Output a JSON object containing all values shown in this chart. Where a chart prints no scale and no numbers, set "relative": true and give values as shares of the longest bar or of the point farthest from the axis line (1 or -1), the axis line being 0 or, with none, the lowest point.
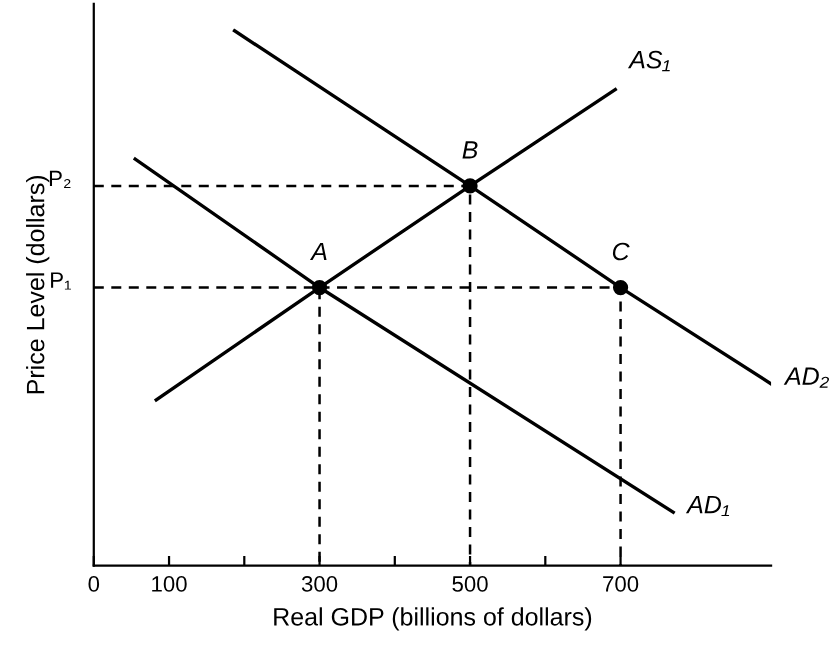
{
  "chart_data": {
    "type": "line",
    "xlabel": "Real GDP (billions of dollars)",
    "ylabel": "Price Level (dollars)",
    "relative": true,
    "xlim": [
      0,
      900
    ],
    "xticks": [
      0,
      100,
      {
        "value": 200,
        "label": null
      },
      300,
      {
        "value": 400,
        "label": null
      },
      500,
      {
        "value": 600,
        "label": null
      },
      700
    ],
    "grid": false,
    "legend": false,
    "series": [
      {
        "name": "AS₁",
        "color": "#000000",
        "x": [
          83,
          300,
          500,
          693
        ],
        "values": [
          0.31,
          0.52,
          0.71,
          0.89
        ]
      },
      {
        "name": "AD₁",
        "color": "#000000",
        "x": [
          55,
          300,
          770
        ],
        "values": [
          0.76,
          0.52,
          0.1
        ]
      },
      {
        "name": "AD₂",
        "color": "#000000",
        "x": [
          187,
          500,
          700,
          900
        ],
        "values": [
          1.0,
          0.71,
          0.52,
          0.34
        ]
      },
      {
        "color": "#000000",
        "type": "line",
        "line_style": "dashed",
        "x": [
          0,
          300,
          300
        ],
        "values": [
          0.52,
          0.52,
          0
        ]
      },
      {
        "color": "#000000",
        "type": "line",
        "line_style": "dashed",
        "x": [
          0,
          500,
          500
        ],
        "values": [
          0.71,
          0.71,
          0
        ]
      },
      {
        "color": "#000000",
        "type": "line",
        "line_style": "dashed",
        "x": [
          300,
          700,
          700
        ],
        "values": [
          0.52,
          0.52,
          0
        ]
      },
      {
        "color": "#000000",
        "type": "scatter",
        "marker": "circle",
        "x": [
          300,
          500,
          700
        ],
        "values": [
          0.52,
          0.71,
          0.52
        ]
      }
    ],
    "annotations": [
      {
        "text": "A",
        "x": 300,
        "y": 0.52
      },
      {
        "text": "B",
        "x": 500,
        "y": 0.71
      },
      {
        "text": "C",
        "x": 700,
        "y": 0.52
      },
      {
        "text": "P₁",
        "x": 0,
        "y": 0.52
      },
      {
        "text": "P₂",
        "x": 0,
        "y": 0.71
      }
    ]
  }
}
